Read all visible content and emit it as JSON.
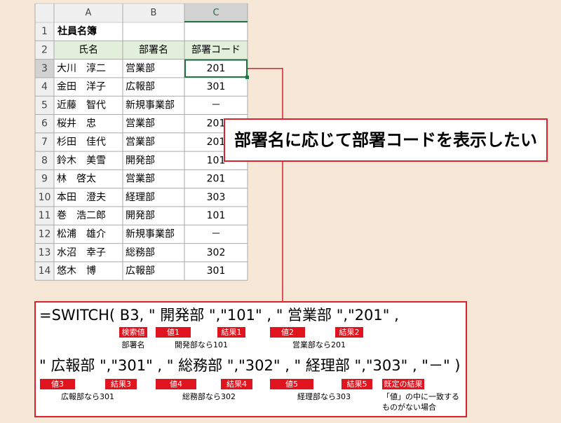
{
  "spreadsheet": {
    "columns": [
      "A",
      "B",
      "C"
    ],
    "row_numbers": [
      1,
      2,
      3,
      4,
      5,
      6,
      7,
      8,
      9,
      10,
      11,
      12,
      13,
      14
    ],
    "title": "社員名簿",
    "header": [
      "氏名",
      "部署名",
      "部署コード"
    ],
    "rows": [
      [
        "大川　淳二",
        "営業部",
        "201"
      ],
      [
        "金田　洋子",
        "広報部",
        "301"
      ],
      [
        "近藤　智代",
        "新規事業部",
        "－"
      ],
      [
        "桜井　忠",
        "営業部",
        "201"
      ],
      [
        "杉田　佳代",
        "営業部",
        "201"
      ],
      [
        "鈴木　美雪",
        "開発部",
        "101"
      ],
      [
        "林　啓太",
        "営業部",
        "201"
      ],
      [
        "本田　澄夫",
        "経理部",
        "303"
      ],
      [
        "巻　浩二郎",
        "開発部",
        "101"
      ],
      [
        "松浦　雄介",
        "新規事業部",
        "－"
      ],
      [
        "水沼　幸子",
        "総務部",
        "302"
      ],
      [
        "悠木　博",
        "広報部",
        "301"
      ]
    ]
  },
  "callout": "部署名に応じて部署コードを表示したい",
  "formula": {
    "lines": [
      "=SWITCH( B3, \" 開発部 \",\"101\" , \" 営業部 \",\"201\" ,",
      "\" 広報部 \",\"301\" , \" 総務部 \",\"302\" , \" 経理部 \",\"303\" , \"－\" )"
    ],
    "tags": [
      "検索値",
      "値1",
      "結果1",
      "値2",
      "結果2",
      "値3",
      "結果3",
      "値4",
      "結果4",
      "値5",
      "結果5",
      "既定の結果"
    ],
    "notes": [
      "部署名",
      "開発部なら101",
      "営業部なら201",
      "広報部なら301",
      "総務部なら302",
      "経理部なら303",
      "「値」の中に一致する",
      "ものがない場合"
    ]
  }
}
